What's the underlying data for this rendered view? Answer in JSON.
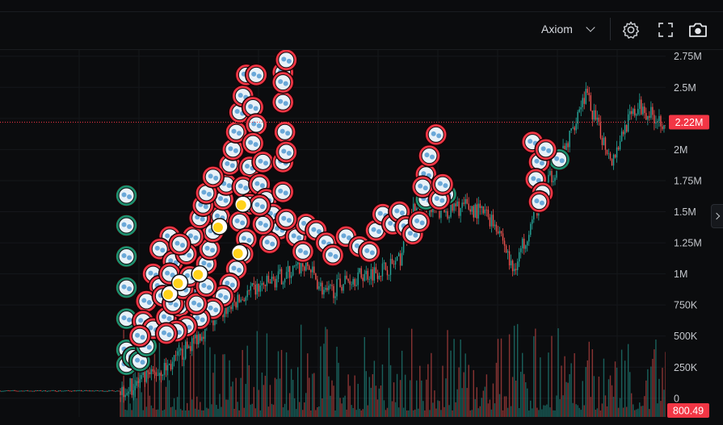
{
  "toolbar": {
    "source_label": "Axiom",
    "icons": [
      "chevron-down-icon",
      "gear-icon",
      "fullscreen-icon",
      "camera-icon"
    ]
  },
  "colors": {
    "background": "#0b0c0e",
    "up": "#26a69a",
    "down": "#ef5350",
    "price_badge": "#f23645",
    "marker_red": "#f23645",
    "marker_green": "#1e8f6e"
  },
  "chart_data": {
    "type": "candlestick",
    "y_axis": {
      "ticks": [
        {
          "value": 2750000,
          "label": "2.75M"
        },
        {
          "value": 2500000,
          "label": "2.5M"
        },
        {
          "value": 2250000,
          "label": "2.25M"
        },
        {
          "value": 2000000,
          "label": "2M"
        },
        {
          "value": 1750000,
          "label": "1.75M"
        },
        {
          "value": 1500000,
          "label": "1.5M"
        },
        {
          "value": 1250000,
          "label": "1.25M"
        },
        {
          "value": 1000000,
          "label": "1M"
        },
        {
          "value": 750000,
          "label": "750K"
        },
        {
          "value": 500000,
          "label": "500K"
        },
        {
          "value": 250000,
          "label": "250K"
        },
        {
          "value": 0,
          "label": "0"
        }
      ],
      "range": [
        -150000,
        2800000
      ]
    },
    "current_price": {
      "value": 2220000,
      "label": "2.22M"
    },
    "volume_label": {
      "value": 800.49,
      "label": "800.49"
    },
    "price_path": [
      [
        0,
        60000
      ],
      [
        0.18,
        60000
      ],
      [
        0.2,
        100000
      ],
      [
        0.26,
        280000
      ],
      [
        0.3,
        520000
      ],
      [
        0.34,
        720000
      ],
      [
        0.38,
        860000
      ],
      [
        0.42,
        970000
      ],
      [
        0.46,
        1080000
      ],
      [
        0.49,
        830000
      ],
      [
        0.52,
        950000
      ],
      [
        0.55,
        1000000
      ],
      [
        0.58,
        1050000
      ],
      [
        0.6,
        1100000
      ],
      [
        0.62,
        1520000
      ],
      [
        0.66,
        1500000
      ],
      [
        0.7,
        1540000
      ],
      [
        0.73,
        1480000
      ],
      [
        0.75,
        1370000
      ],
      [
        0.77,
        1020000
      ],
      [
        0.79,
        1300000
      ],
      [
        0.82,
        1700000
      ],
      [
        0.85,
        2000000
      ],
      [
        0.87,
        2340000
      ],
      [
        0.88,
        2450000
      ],
      [
        0.9,
        2150000
      ],
      [
        0.92,
        1920000
      ],
      [
        0.94,
        2200000
      ],
      [
        0.96,
        2340000
      ],
      [
        1.0,
        2220000
      ]
    ],
    "markers": {
      "red_faces": [
        [
          0.255,
          1300000
        ],
        [
          0.24,
          1200000
        ],
        [
          0.26,
          1100000
        ],
        [
          0.23,
          1000000
        ],
        [
          0.24,
          900000
        ],
        [
          0.22,
          780000
        ],
        [
          0.215,
          620000
        ],
        [
          0.23,
          560000
        ],
        [
          0.21,
          500000
        ],
        [
          0.25,
          650000
        ],
        [
          0.27,
          740000
        ],
        [
          0.29,
          860000
        ],
        [
          0.3,
          960000
        ],
        [
          0.31,
          1080000
        ],
        [
          0.315,
          1200000
        ],
        [
          0.32,
          1340000
        ],
        [
          0.33,
          1460000
        ],
        [
          0.335,
          1600000
        ],
        [
          0.34,
          1720000
        ],
        [
          0.345,
          1880000
        ],
        [
          0.35,
          2000000
        ],
        [
          0.355,
          2140000
        ],
        [
          0.36,
          2300000
        ],
        [
          0.365,
          2430000
        ],
        [
          0.37,
          2600000
        ],
        [
          0.385,
          2600000
        ],
        [
          0.38,
          2340000
        ],
        [
          0.385,
          2200000
        ],
        [
          0.38,
          2050000
        ],
        [
          0.375,
          1860000
        ],
        [
          0.365,
          1700000
        ],
        [
          0.375,
          1560000
        ],
        [
          0.36,
          1420000
        ],
        [
          0.37,
          1280000
        ],
        [
          0.365,
          1160000
        ],
        [
          0.355,
          1040000
        ],
        [
          0.345,
          920000
        ],
        [
          0.335,
          820000
        ],
        [
          0.32,
          720000
        ],
        [
          0.3,
          640000
        ],
        [
          0.28,
          580000
        ],
        [
          0.265,
          540000
        ],
        [
          0.25,
          520000
        ],
        [
          0.29,
          1300000
        ],
        [
          0.3,
          1450000
        ],
        [
          0.305,
          1550000
        ],
        [
          0.31,
          1650000
        ],
        [
          0.32,
          1780000
        ],
        [
          0.395,
          1900000
        ],
        [
          0.39,
          1720000
        ],
        [
          0.4,
          1600000
        ],
        [
          0.41,
          1480000
        ],
        [
          0.42,
          1360000
        ],
        [
          0.405,
          1250000
        ],
        [
          0.395,
          1400000
        ],
        [
          0.39,
          1550000
        ],
        [
          0.445,
          1300000
        ],
        [
          0.455,
          1180000
        ],
        [
          0.46,
          1400000
        ],
        [
          0.475,
          1350000
        ],
        [
          0.49,
          1250000
        ],
        [
          0.5,
          1150000
        ],
        [
          0.52,
          1300000
        ],
        [
          0.54,
          1220000
        ],
        [
          0.555,
          1180000
        ],
        [
          0.565,
          1350000
        ],
        [
          0.575,
          1480000
        ],
        [
          0.59,
          1400000
        ],
        [
          0.6,
          1500000
        ],
        [
          0.61,
          1380000
        ],
        [
          0.62,
          1320000
        ],
        [
          0.63,
          1420000
        ],
        [
          0.64,
          1800000
        ],
        [
          0.635,
          1700000
        ],
        [
          0.645,
          1950000
        ],
        [
          0.655,
          2120000
        ],
        [
          0.66,
          1600000
        ],
        [
          0.665,
          1720000
        ],
        [
          0.8,
          2060000
        ],
        [
          0.81,
          1900000
        ],
        [
          0.805,
          1760000
        ],
        [
          0.815,
          1650000
        ],
        [
          0.82,
          2000000
        ],
        [
          0.81,
          1580000
        ],
        [
          0.425,
          2620000
        ],
        [
          0.425,
          2380000
        ],
        [
          0.428,
          2140000
        ],
        [
          0.425,
          1900000
        ],
        [
          0.425,
          1660000
        ],
        [
          0.43,
          1440000
        ],
        [
          0.43,
          2720000
        ],
        [
          0.425,
          2540000
        ],
        [
          0.43,
          1980000
        ],
        [
          0.255,
          1000000
        ],
        [
          0.28,
          1160000
        ],
        [
          0.27,
          1240000
        ],
        [
          0.245,
          820000
        ],
        [
          0.26,
          760000
        ],
        [
          0.275,
          880000
        ],
        [
          0.285,
          980000
        ],
        [
          0.295,
          760000
        ],
        [
          0.31,
          900000
        ]
      ],
      "green_faces": [
        [
          0.19,
          1630000
        ],
        [
          0.19,
          1390000
        ],
        [
          0.19,
          1140000
        ],
        [
          0.19,
          890000
        ],
        [
          0.19,
          640000
        ],
        [
          0.19,
          390000
        ],
        [
          0.19,
          270000
        ],
        [
          0.2,
          330000
        ],
        [
          0.21,
          300000
        ],
        [
          0.22,
          420000
        ],
        [
          0.64,
          1600000
        ],
        [
          0.67,
          1640000
        ],
        [
          0.84,
          1920000
        ]
      ],
      "yellow_dots": [
        [
          0.33,
          1380000
        ],
        [
          0.255,
          840000
        ],
        [
          0.27,
          930000
        ],
        [
          0.3,
          1000000
        ],
        [
          0.36,
          1170000
        ],
        [
          0.365,
          1560000
        ]
      ]
    }
  }
}
